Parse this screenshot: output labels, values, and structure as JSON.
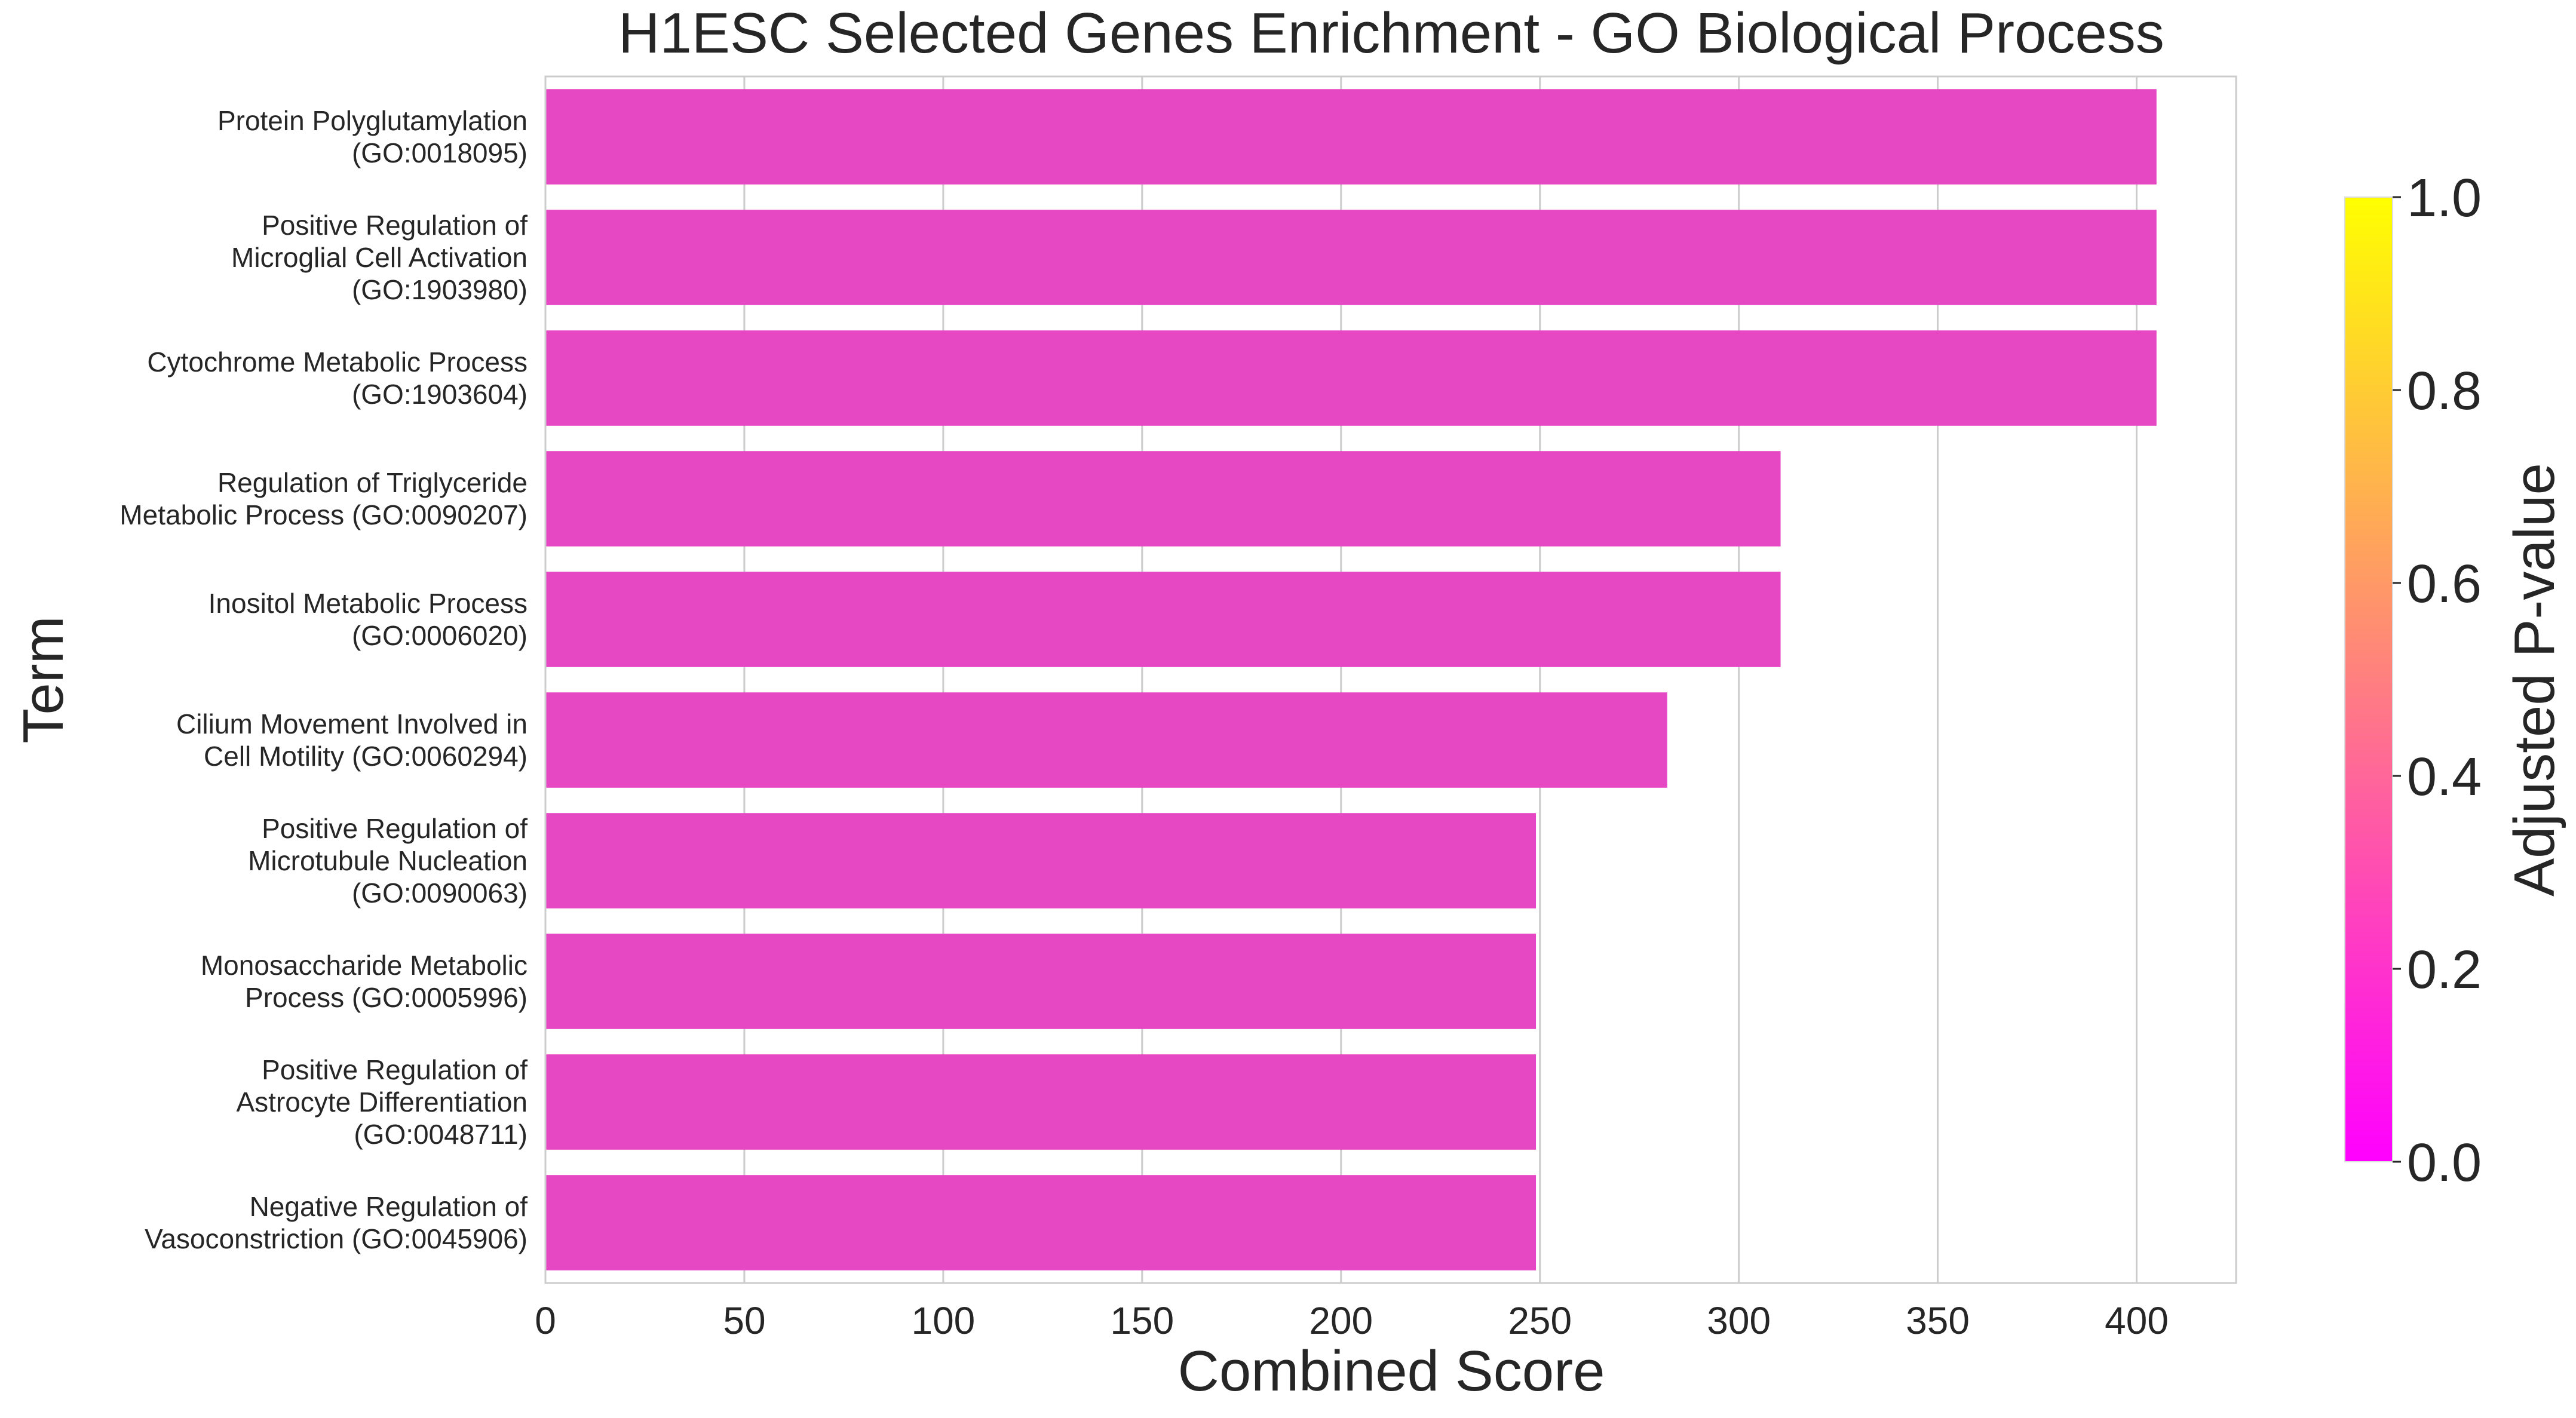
{
  "chart_data": {
    "type": "bar",
    "orientation": "horizontal",
    "title": "H1ESC Selected Genes Enrichment - GO Biological Process",
    "xlabel": "Combined Score",
    "ylabel": "Term",
    "xlim": [
      0,
      425
    ],
    "xticks": [
      0,
      50,
      100,
      150,
      200,
      250,
      300,
      350,
      400
    ],
    "grid": true,
    "categories": [
      [
        "Protein Polyglutamylation",
        "(GO:0018095)"
      ],
      [
        "Positive Regulation of",
        "Microglial Cell Activation",
        "(GO:1903980)"
      ],
      [
        "Cytochrome Metabolic Process",
        "(GO:1903604)"
      ],
      [
        "Regulation of Triglyceride",
        "Metabolic Process (GO:0090207)"
      ],
      [
        "Inositol Metabolic Process",
        "(GO:0006020)"
      ],
      [
        "Cilium Movement Involved in",
        "Cell Motility (GO:0060294)"
      ],
      [
        "Positive Regulation of",
        "Microtubule Nucleation",
        "(GO:0090063)"
      ],
      [
        "Monosaccharide Metabolic",
        "Process (GO:0005996)"
      ],
      [
        "Positive Regulation of",
        "Astrocyte Differentiation",
        "(GO:0048711)"
      ],
      [
        "Negative Regulation of",
        "Vasoconstriction (GO:0045906)"
      ]
    ],
    "values": [
      405,
      405,
      405,
      310.5,
      310.5,
      282,
      249,
      249,
      249,
      249
    ],
    "bar_color": "#e647c3",
    "colorbar": {
      "label": "Adjusted P-value",
      "range": [
        0.0,
        1.0
      ],
      "ticks": [
        "0.0",
        "0.2",
        "0.4",
        "0.6",
        "0.8",
        "1.0"
      ],
      "colormap": "spring",
      "color_low": "#ff00ff",
      "color_high": "#ffff00"
    }
  }
}
